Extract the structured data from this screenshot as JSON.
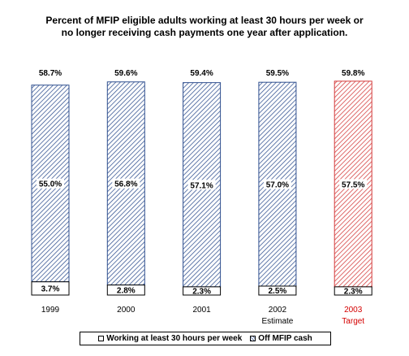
{
  "chart_data": {
    "type": "bar",
    "stacked": true,
    "title": [
      "Percent of  MFIP eligible adults working at least 30 hours per week or",
      "no longer receiving cash payments one year after application."
    ],
    "categories": [
      "1999",
      "2000",
      "2001",
      "2002",
      "2003"
    ],
    "category_sublabels": [
      "",
      "",
      "",
      "Estimate",
      "Target"
    ],
    "series": [
      {
        "name": "Working at least 30 hours per week",
        "values": [
          3.7,
          2.8,
          2.3,
          2.5,
          2.3
        ]
      },
      {
        "name": "Off MFIP cash",
        "values": [
          55.0,
          56.8,
          57.1,
          57.0,
          57.5
        ]
      }
    ],
    "totals": [
      58.7,
      59.6,
      59.4,
      59.5,
      59.8
    ],
    "value_labels_working": [
      "3.7%",
      "2.8%",
      "2.3%",
      "2.5%",
      "2.3%"
    ],
    "value_labels_off": [
      "55.0%",
      "56.8%",
      "57.1%",
      "57.0%",
      "57.5%"
    ],
    "total_labels": [
      "58.7%",
      "59.6%",
      "59.4%",
      "59.5%",
      "59.8%"
    ],
    "highlight_category": "2003",
    "colors": {
      "normal": "#2f4f8f",
      "highlight": "#d43a3a",
      "text": "#000000",
      "highlight_text": "#d40000"
    },
    "legend_position": "bottom",
    "grid": false
  },
  "legend": {
    "working_label": "Working at least 30 hours per week",
    "off_label": "Off MFIP cash"
  }
}
